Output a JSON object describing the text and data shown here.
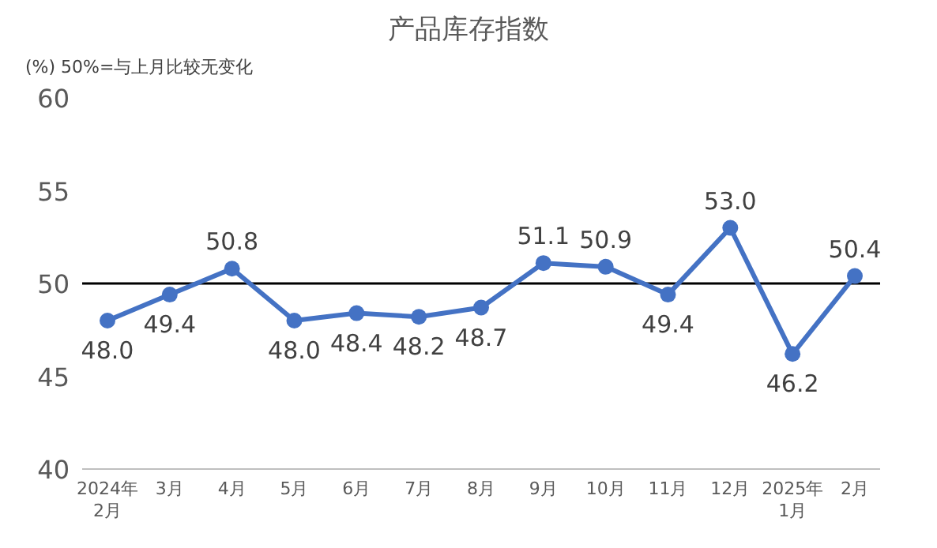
{
  "chart_data": {
    "type": "line",
    "title": "产品库存指数",
    "annotations": [
      "(%)  50%=与上月比较无变化"
    ],
    "categories": [
      "2024年\n2月",
      "3月",
      "4月",
      "5月",
      "6月",
      "7月",
      "8月",
      "9月",
      "10月",
      "11月",
      "12月",
      "2025年\n1月",
      "2月"
    ],
    "series": [
      {
        "color": "#4472c4",
        "values": [
          48.0,
          49.4,
          50.8,
          48.0,
          48.4,
          48.2,
          48.7,
          51.1,
          50.9,
          49.4,
          53.0,
          46.2,
          50.4
        ],
        "value_labels": [
          "48.0",
          "49.4",
          "50.8",
          "48.0",
          "48.4",
          "48.2",
          "48.7",
          "51.1",
          "50.9",
          "49.4",
          "53.0",
          "46.2",
          "50.4"
        ]
      }
    ],
    "ylim": [
      40,
      60
    ],
    "yticks": [
      40,
      45,
      50,
      55,
      60
    ],
    "ref_lines": [
      {
        "axis": "y",
        "value": 50,
        "color": "#000000"
      }
    ],
    "marker": "circle",
    "line_style": "solid",
    "grid": false
  }
}
